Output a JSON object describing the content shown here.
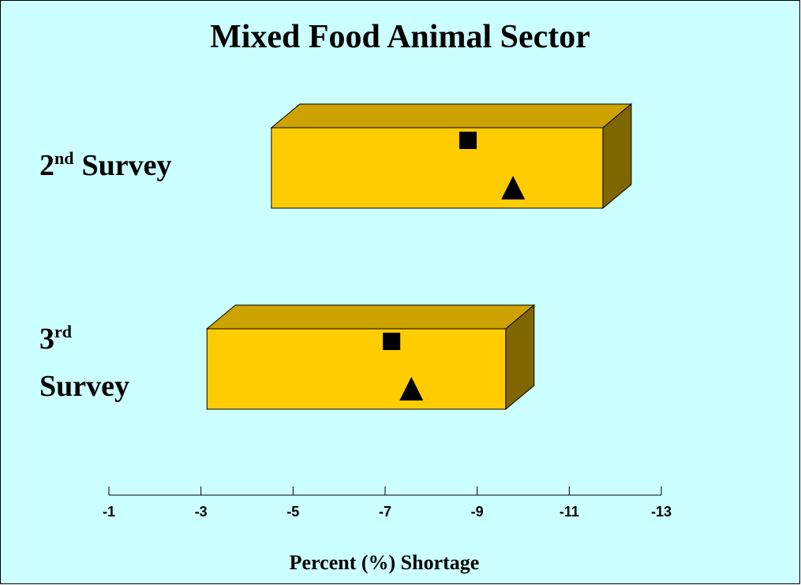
{
  "chart_data": {
    "type": "range_bar",
    "title": "Mixed Food Animal Sector",
    "x_label": "Percent (%) Shortage",
    "categories": [
      {
        "base": "2",
        "sup": "nd",
        "rest": "Survey"
      },
      {
        "base": "3",
        "sup": "rd",
        "rest": "Survey"
      }
    ],
    "ranges": [
      [
        -4.53,
        -11.73
      ],
      [
        -3.13,
        -9.62
      ]
    ],
    "color": "#ffcc00",
    "series": [
      {
        "marker": "square",
        "color": "#000000",
        "values": [
          -8.8,
          -7.14
        ]
      },
      {
        "marker": "triangle",
        "color": "#000000",
        "values": [
          -9.78,
          -7.57
        ]
      }
    ],
    "xlim": [
      -1,
      -13
    ],
    "xticks": [
      -1,
      -3,
      -5,
      -7,
      -9,
      -11,
      -13
    ]
  }
}
